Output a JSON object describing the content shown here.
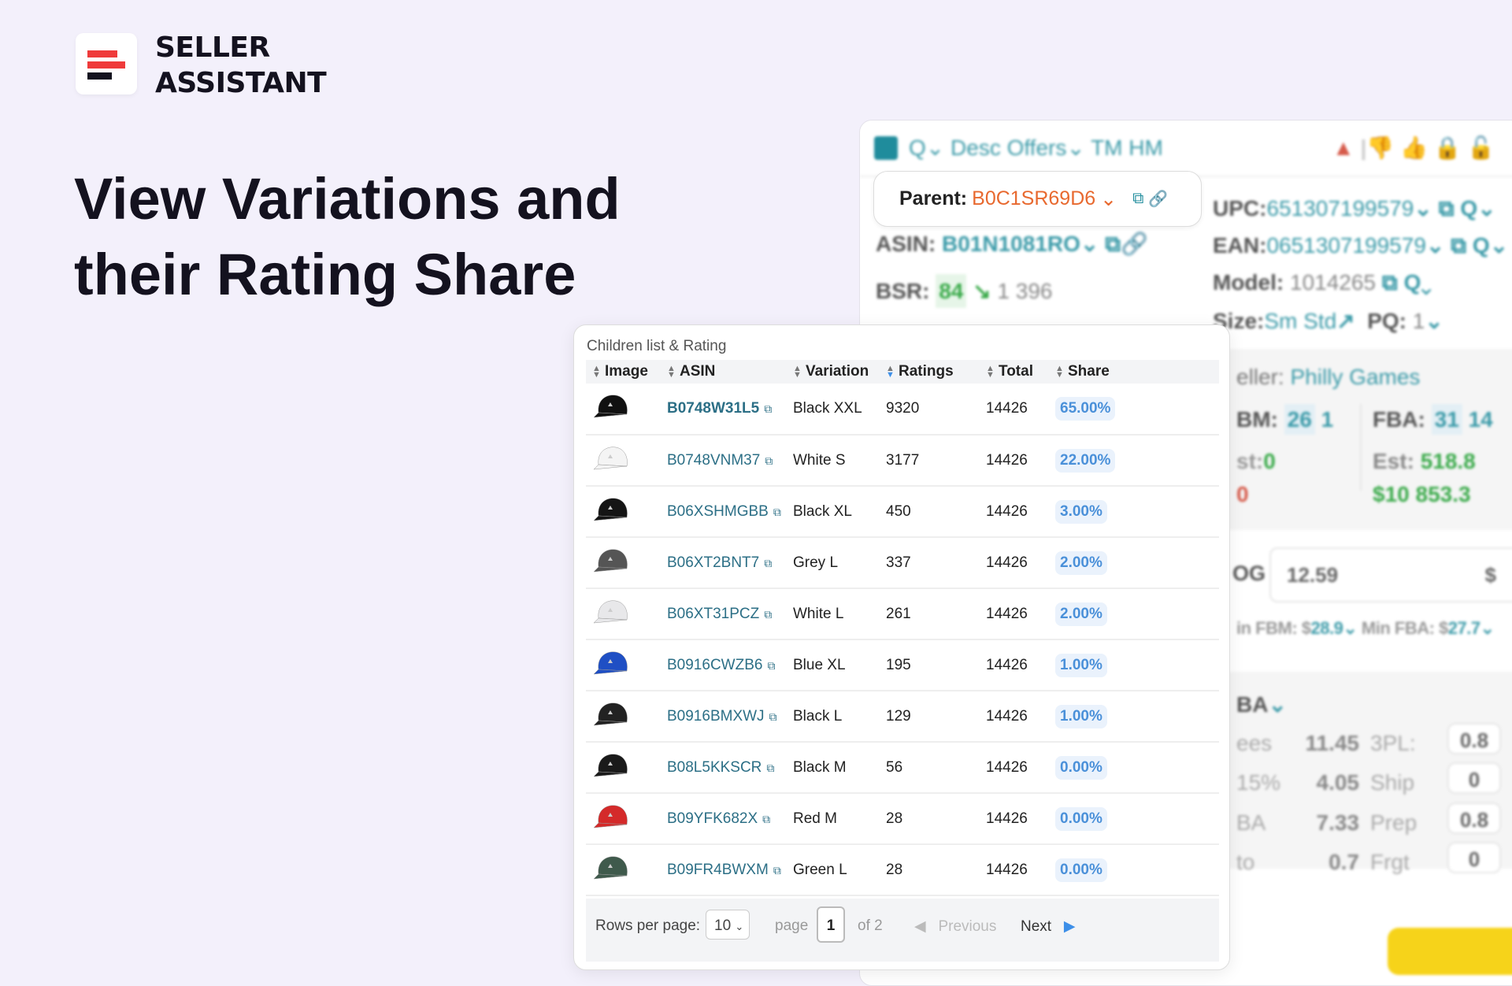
{
  "brand": {
    "line1": "SELLER",
    "line2": "ASSISTANT",
    "colors": {
      "bar": "#ef3b3b",
      "dark": "#14121f"
    }
  },
  "headline": {
    "line1": "View Variations and",
    "line2": "their Rating Share"
  },
  "product_panel": {
    "toolbar": {
      "search": "Q",
      "desc": "Desc",
      "offers": "Offers",
      "tm": "TM",
      "hm": "HM",
      "icons": [
        "warning-icon",
        "thumbs-down-icon",
        "thumbs-up-icon",
        "lock-icon",
        "unlock-icon"
      ]
    },
    "parent": {
      "label": "Parent:",
      "value": "B0C1SR69D6"
    },
    "asin": {
      "label": "ASIN:",
      "value": "B01N1081RO"
    },
    "bsr": {
      "label": "BSR:",
      "rank": "84",
      "value": "1 396"
    },
    "upc": {
      "label": "UPC:",
      "value": "651307199579"
    },
    "ean": {
      "label": "EAN:",
      "value": "0651307199579"
    },
    "model": {
      "label": "Model:",
      "value": "1014265"
    },
    "size": {
      "label": "Size:",
      "value": "Sm Std",
      "pq_label": "PQ:",
      "pq_value": "1"
    },
    "seller": {
      "label": "eller:",
      "value": "Philly Games"
    },
    "fbm": {
      "label": "BM:",
      "count": "26",
      "value": "1",
      "est_label": "st:",
      "est": "0",
      "extra": "0"
    },
    "fba": {
      "label": "FBA:",
      "count": "31",
      "value": "14",
      "est_label": "Est:",
      "est": "518.8",
      "revenue": "$10 853.3"
    },
    "cog": {
      "label": "OG",
      "value": "12.59",
      "currency": "$"
    },
    "min": {
      "fbm_label": "in FBM: $",
      "fbm": "28.9",
      "fba_label": "Min FBA: $",
      "fba": "27.7"
    },
    "fees": {
      "header": "BA",
      "rows": [
        {
          "label": "ees",
          "value": "11.45",
          "k": "3PL:",
          "v": "0.8"
        },
        {
          "label": "15%",
          "value": "4.05",
          "k": "Ship",
          "v": "0"
        },
        {
          "label": "BA",
          "value": "7.33",
          "k": "Prep",
          "v": "0.8"
        },
        {
          "label": "to",
          "value": "0.7",
          "k": "Frgt",
          "v": "0"
        }
      ]
    }
  },
  "children": {
    "title": "Children list & Rating",
    "columns": [
      "Image",
      "ASIN",
      "Variation",
      "Ratings",
      "Total",
      "Share"
    ],
    "sorted_column": "Ratings",
    "rows": [
      {
        "asin": "B0748W31L5",
        "variation": "Black XXL",
        "ratings": "9320",
        "total": "14426",
        "share": "65.00%",
        "color": "#111111"
      },
      {
        "asin": "B0748VNM37",
        "variation": "White S",
        "ratings": "3177",
        "total": "14426",
        "share": "22.00%",
        "color": "#f4f4f4"
      },
      {
        "asin": "B06XSHMGBB",
        "variation": "Black XL",
        "ratings": "450",
        "total": "14426",
        "share": "3.00%",
        "color": "#151515"
      },
      {
        "asin": "B06XT2BNT7",
        "variation": "Grey L",
        "ratings": "337",
        "total": "14426",
        "share": "2.00%",
        "color": "#555555"
      },
      {
        "asin": "B06XT31PCZ",
        "variation": "White L",
        "ratings": "261",
        "total": "14426",
        "share": "2.00%",
        "color": "#e8e8ea"
      },
      {
        "asin": "B0916CWZB6",
        "variation": "Blue XL",
        "ratings": "195",
        "total": "14426",
        "share": "1.00%",
        "color": "#1f4fc4"
      },
      {
        "asin": "B0916BMXWJ",
        "variation": "Black L",
        "ratings": "129",
        "total": "14426",
        "share": "1.00%",
        "color": "#222222"
      },
      {
        "asin": "B08L5KKSCR",
        "variation": "Black M",
        "ratings": "56",
        "total": "14426",
        "share": "0.00%",
        "color": "#1a1a1a"
      },
      {
        "asin": "B09YFK682X",
        "variation": "Red M",
        "ratings": "28",
        "total": "14426",
        "share": "0.00%",
        "color": "#d42a2a"
      },
      {
        "asin": "B09FR4BWXM",
        "variation": "Green L",
        "ratings": "28",
        "total": "14426",
        "share": "0.00%",
        "color": "#3f5a4c"
      }
    ],
    "footer": {
      "rows_label": "Rows per page:",
      "rows_value": "10",
      "page_label": "page",
      "page_value": "1",
      "of": "of 2",
      "previous": "Previous",
      "next": "Next"
    }
  }
}
